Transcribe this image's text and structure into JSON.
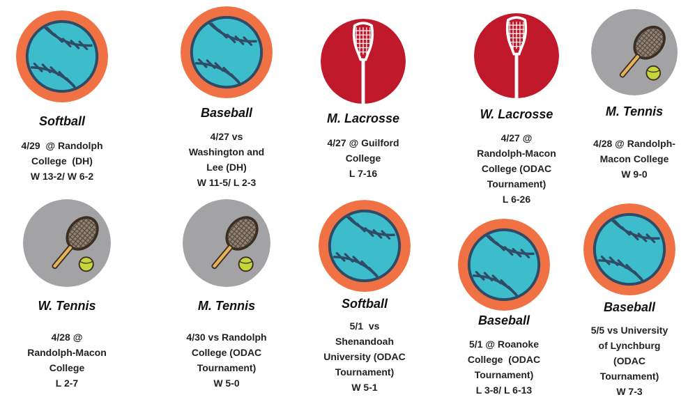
{
  "colors": {
    "ball_orange": "#F07144",
    "ball_blue": "#3DBCCB",
    "stitch": "#2F4B66",
    "lacrosse_red": "#C0192C",
    "tennis_gray": "#A3A3A5"
  },
  "cards": [
    {
      "sport": "Softball",
      "icon": "softball-icon",
      "lines": [
        "4/29  @ Randolph",
        "College  (DH)",
        "W 13-2/ W 6-2"
      ]
    },
    {
      "sport": "Baseball",
      "icon": "baseball-icon",
      "lines": [
        "4/27 vs",
        "Washington and",
        "Lee (DH)",
        "W 11-5/ L 2-3"
      ]
    },
    {
      "sport": "M. Lacrosse",
      "icon": "lacrosse-stick-icon",
      "lines": [
        "4/27 @ Guilford",
        "College",
        "L 7-16"
      ]
    },
    {
      "sport": "W. Lacrosse",
      "icon": "lacrosse-stick-icon",
      "lines": [
        "4/27 @",
        "Randolph-Macon",
        "College (ODAC",
        "Tournament)",
        "L 6-26"
      ]
    },
    {
      "sport": "M. Tennis",
      "icon": "tennis-racket-icon",
      "lines": [
        "4/28 @ Randolph-",
        "Macon College",
        "W 9-0"
      ]
    },
    {
      "sport": "W. Tennis",
      "icon": "tennis-racket-icon",
      "lines": [
        "4/28 @",
        "Randolph-Macon",
        "College",
        "L 2-7"
      ]
    },
    {
      "sport": "M. Tennis",
      "icon": "tennis-racket-icon",
      "lines": [
        "4/30 vs Randolph",
        "College (ODAC",
        "Tournament)",
        "W 5-0"
      ]
    },
    {
      "sport": "Softball",
      "icon": "softball-icon",
      "lines": [
        "5/1  vs",
        "Shenandoah",
        "University (ODAC",
        "Tournament)",
        "W 5-1"
      ]
    },
    {
      "sport": "Baseball",
      "icon": "baseball-icon",
      "lines": [
        "5/1 @ Roanoke",
        "College  (ODAC",
        "Tournament)",
        "L 3-8/ L 6-13"
      ]
    },
    {
      "sport": "Baseball",
      "icon": "baseball-icon",
      "lines": [
        "5/5 vs University",
        "of Lynchburg",
        "(ODAC",
        "Tournament)",
        "W 7-3"
      ]
    }
  ]
}
